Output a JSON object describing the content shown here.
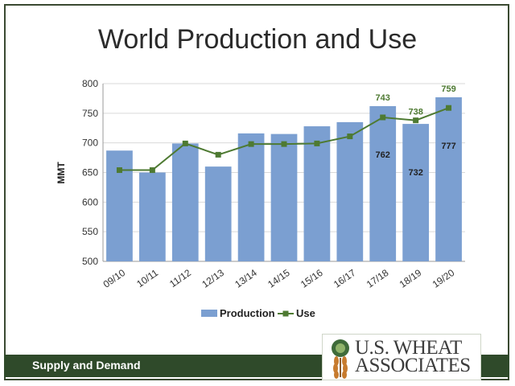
{
  "slide": {
    "title": "World Production and Use",
    "footer_label": "Supply and Demand",
    "logo_line1": "U.S. WHEAT",
    "logo_line2": "ASSOCIATES"
  },
  "colors": {
    "production": "#7b9fd1",
    "use": "#4e7a32",
    "use_label": "#4e7a32",
    "footer": "#2f4a2a"
  },
  "chart_data": {
    "type": "bar",
    "title": "",
    "xlabel": "",
    "ylabel": "MMT",
    "ylim": [
      500,
      800
    ],
    "yticks": [
      500,
      550,
      600,
      650,
      700,
      750,
      800
    ],
    "grid": true,
    "legend": "bottom",
    "categories": [
      "09/10",
      "10/11",
      "11/12",
      "12/13",
      "13/14",
      "14/15",
      "15/16",
      "16/17",
      "17/18",
      "18/19",
      "19/20"
    ],
    "series": [
      {
        "name": "Production",
        "type": "bar",
        "values": [
          687,
          650,
          699,
          660,
          716,
          715,
          728,
          735,
          762,
          732,
          777
        ],
        "data_labels": [
          null,
          null,
          null,
          null,
          null,
          null,
          null,
          null,
          "762",
          "732",
          "777"
        ]
      },
      {
        "name": "Use",
        "type": "line",
        "values": [
          654,
          654,
          699,
          680,
          698,
          698,
          699,
          711,
          743,
          738,
          759
        ],
        "data_labels": [
          null,
          null,
          null,
          null,
          null,
          null,
          null,
          null,
          "743",
          "738",
          "759"
        ]
      }
    ]
  }
}
